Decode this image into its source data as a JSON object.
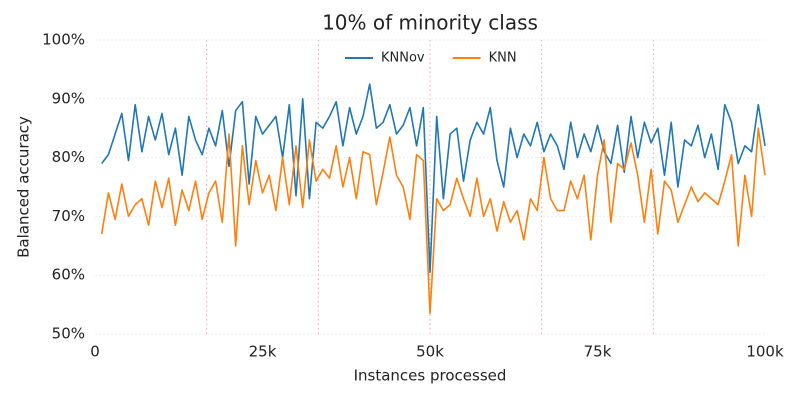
{
  "chart_data": {
    "type": "line",
    "title": "10% of minority class",
    "xlabel": "Instances processed",
    "ylabel": "Balanced accuracy",
    "xlim": [
      0,
      100000
    ],
    "ylim": [
      50,
      100
    ],
    "xticks": [
      0,
      {
        "value": 25000,
        "label": "25k"
      },
      {
        "value": 50000,
        "label": "50k"
      },
      {
        "value": 75000,
        "label": "75k"
      },
      {
        "value": 100000,
        "label": "100k"
      }
    ],
    "yticks": [
      {
        "value": 50,
        "label": "50%"
      },
      {
        "value": 60,
        "label": "60%"
      },
      {
        "value": 70,
        "label": "70%"
      },
      {
        "value": 80,
        "label": "80%"
      },
      {
        "value": 90,
        "label": "90%"
      },
      {
        "value": 100,
        "label": "100%"
      }
    ],
    "grid": true,
    "legend": "top",
    "drift_lines": [
      16667,
      33333,
      50000,
      66667,
      83333
    ],
    "drift_color": "#f4a6b0",
    "x": [
      1000,
      2000,
      3000,
      4000,
      5000,
      6000,
      7000,
      8000,
      9000,
      10000,
      11000,
      12000,
      13000,
      14000,
      15000,
      16000,
      17000,
      18000,
      19000,
      20000,
      21000,
      22000,
      23000,
      24000,
      25000,
      26000,
      27000,
      28000,
      29000,
      30000,
      31000,
      32000,
      33000,
      34000,
      35000,
      36000,
      37000,
      38000,
      39000,
      40000,
      41000,
      42000,
      43000,
      44000,
      45000,
      46000,
      47000,
      48000,
      49000,
      50000,
      51000,
      52000,
      53000,
      54000,
      55000,
      56000,
      57000,
      58000,
      59000,
      60000,
      61000,
      62000,
      63000,
      64000,
      65000,
      66000,
      67000,
      68000,
      69000,
      70000,
      71000,
      72000,
      73000,
      74000,
      75000,
      76000,
      77000,
      78000,
      79000,
      80000,
      81000,
      82000,
      83000,
      84000,
      85000,
      86000,
      87000,
      88000,
      89000,
      90000,
      91000,
      92000,
      93000,
      94000,
      95000,
      96000,
      97000,
      98000,
      99000,
      100000
    ],
    "series": [
      {
        "name": "KNNov",
        "color": "#1f77b4",
        "values": [
          79,
          80.5,
          84,
          87.5,
          79.5,
          89,
          81,
          87,
          83,
          87.5,
          80.5,
          85,
          77,
          87,
          83,
          80.5,
          85,
          82,
          88,
          78.5,
          88,
          89.5,
          75.5,
          87,
          84,
          85.5,
          87,
          80,
          89,
          73.5,
          90,
          73,
          86,
          85,
          87,
          89.5,
          82,
          88.5,
          84,
          87,
          92.5,
          85,
          86,
          89,
          84,
          85.5,
          88.5,
          82,
          88.5,
          60.5,
          87,
          73,
          84,
          85,
          76,
          83,
          86,
          84,
          88.5,
          79.5,
          75,
          85,
          80,
          84,
          82,
          86,
          81,
          84,
          82,
          78,
          86,
          80,
          84,
          81,
          85.5,
          81,
          79,
          85.5,
          77.5,
          87,
          80,
          86,
          82.5,
          85,
          77,
          86,
          75,
          83,
          82,
          85.5,
          80,
          84,
          78,
          89,
          86,
          79,
          82,
          81,
          89,
          82
        ]
      },
      {
        "name": "KNN",
        "color": "#ff7f0e",
        "values": [
          67,
          74,
          69.5,
          75.5,
          70,
          72,
          73,
          68.5,
          76,
          71.5,
          76.5,
          68.5,
          74.5,
          71,
          76,
          69.5,
          74,
          76,
          69,
          84,
          65,
          82,
          72,
          79.5,
          74,
          77,
          71,
          80,
          72,
          82,
          71.5,
          83,
          76,
          78,
          76.5,
          82,
          75,
          80,
          73,
          81,
          80.5,
          72,
          77.5,
          83.5,
          77,
          75,
          69.5,
          80.5,
          79.5,
          53.5,
          73,
          71,
          72,
          76.5,
          73,
          70,
          76.5,
          70,
          73,
          67.5,
          72.5,
          69,
          71,
          66,
          73,
          71,
          80,
          73,
          71,
          71,
          76,
          73,
          77,
          66,
          77,
          83,
          69,
          79,
          78,
          82.5,
          77,
          69,
          78,
          67,
          76,
          74.5,
          69,
          72,
          75,
          72.5,
          74,
          73,
          72,
          76,
          80.5,
          65,
          77,
          70,
          85,
          77
        ]
      }
    ]
  }
}
